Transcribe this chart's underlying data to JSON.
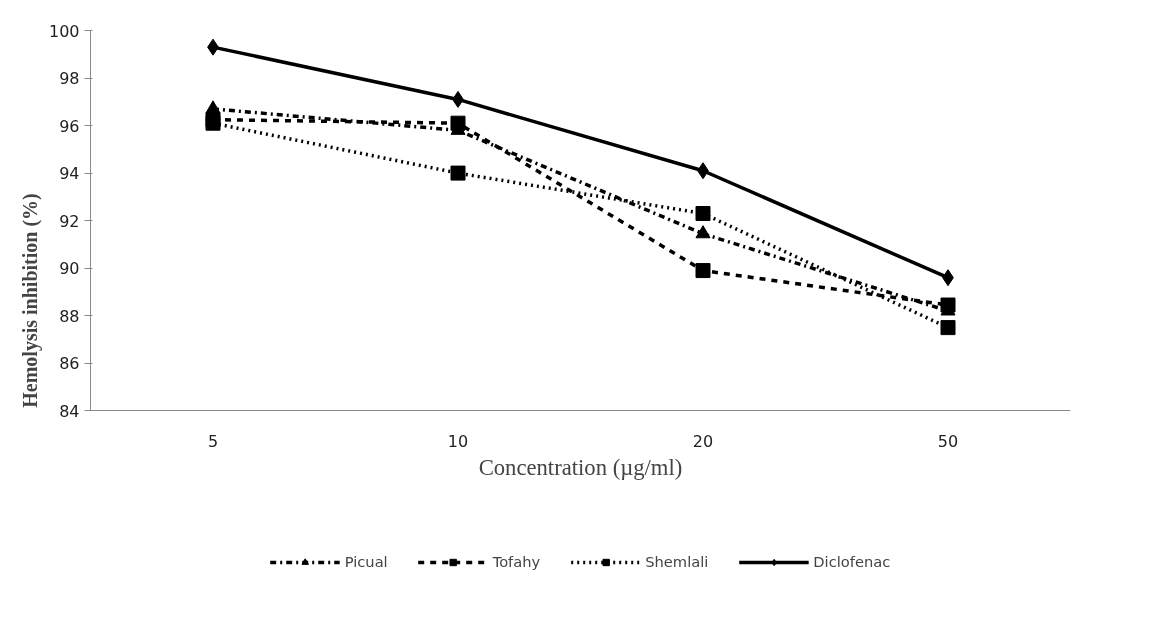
{
  "chart_data": {
    "type": "line",
    "xlabel": "Concentration (µg/ml)",
    "ylabel": "Hemolysis inhibition (%)",
    "categories": [
      "5",
      "10",
      "20",
      "50"
    ],
    "series": [
      {
        "name": "Picual",
        "color": "#000000",
        "marker": "triangle",
        "line_style": "dashdot",
        "values": [
          96.7,
          95.8,
          91.45,
          88.2
        ]
      },
      {
        "name": "Tofahy",
        "color": "#000000",
        "marker": "square",
        "line_style": "dashed",
        "values": [
          96.25,
          96.1,
          89.9,
          88.45
        ]
      },
      {
        "name": "Shemlali",
        "color": "#000000",
        "marker": "square",
        "line_style": "dotted",
        "values": [
          96.1,
          94.0,
          92.3,
          87.5
        ]
      },
      {
        "name": "Diclofenac",
        "color": "#000000",
        "marker": "diamond",
        "line_style": "solid",
        "values": [
          99.3,
          97.1,
          94.1,
          89.6
        ]
      }
    ],
    "ylim": [
      84,
      100
    ],
    "yticks": [
      84,
      86,
      88,
      90,
      92,
      94,
      96,
      98,
      100
    ],
    "grid": false,
    "legend": "bottom"
  }
}
